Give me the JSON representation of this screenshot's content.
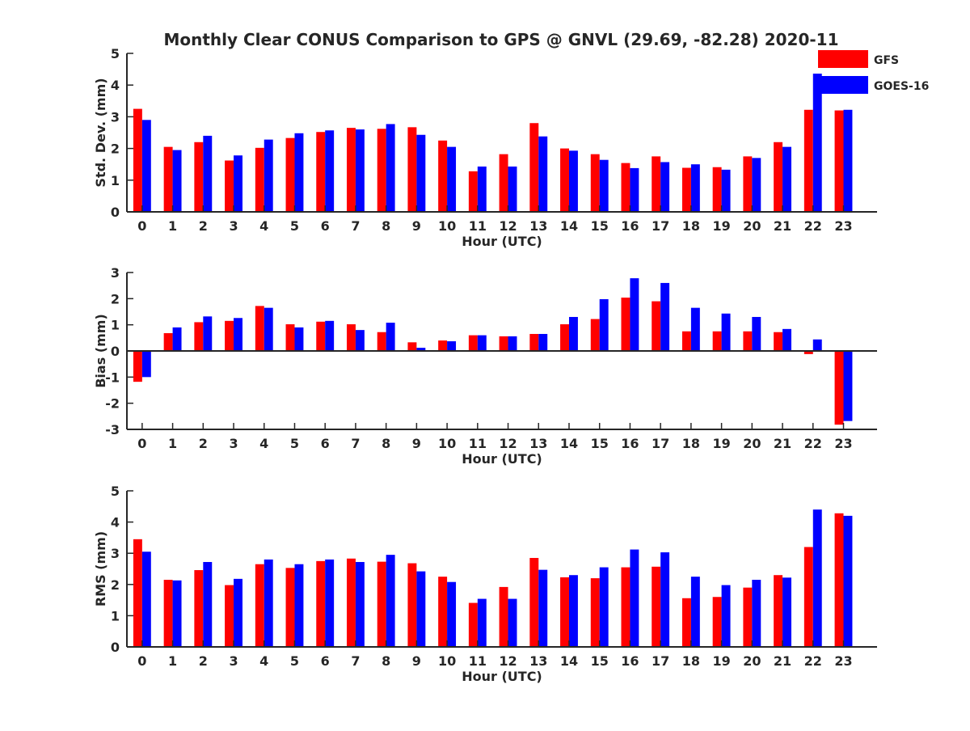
{
  "title": "Monthly Clear CONUS Comparison to GPS @ GNVL (29.69, -82.28) 2020-11",
  "legend": [
    {
      "name": "GFS",
      "color": "#ff0000"
    },
    {
      "name": "GOES-16",
      "color": "#0000ff"
    }
  ],
  "chart_data": [
    {
      "type": "bar",
      "categories": [
        "0",
        "1",
        "2",
        "3",
        "4",
        "5",
        "6",
        "7",
        "8",
        "9",
        "10",
        "11",
        "12",
        "13",
        "14",
        "15",
        "16",
        "17",
        "18",
        "19",
        "20",
        "21",
        "22",
        "23"
      ],
      "xlabel": "Hour (UTC)",
      "ylabel": "Std. Dev. (mm)",
      "ylim": [
        0,
        5
      ],
      "yticks": [
        0,
        1,
        2,
        3,
        4,
        5
      ],
      "series": [
        {
          "name": "GFS",
          "color": "#ff0000",
          "values": [
            3.25,
            2.05,
            2.2,
            1.62,
            2.02,
            2.33,
            2.52,
            2.65,
            2.62,
            2.67,
            2.25,
            1.28,
            1.82,
            2.8,
            2.0,
            1.82,
            1.54,
            1.75,
            1.39,
            1.41,
            1.75,
            2.2,
            3.22,
            3.2
          ]
        },
        {
          "name": "GOES-16",
          "color": "#0000ff",
          "values": [
            2.9,
            1.95,
            2.4,
            1.78,
            2.28,
            2.48,
            2.57,
            2.6,
            2.77,
            2.43,
            2.05,
            1.43,
            1.43,
            2.38,
            1.93,
            1.64,
            1.38,
            1.57,
            1.5,
            1.33,
            1.7,
            2.05,
            4.36,
            3.22
          ]
        }
      ],
      "grid": false,
      "legend_position": "top-right"
    },
    {
      "type": "bar",
      "categories": [
        "0",
        "1",
        "2",
        "3",
        "4",
        "5",
        "6",
        "7",
        "8",
        "9",
        "10",
        "11",
        "12",
        "13",
        "14",
        "15",
        "16",
        "17",
        "18",
        "19",
        "20",
        "21",
        "22",
        "23"
      ],
      "xlabel": "Hour (UTC)",
      "ylabel": "Bias (mm)",
      "ylim": [
        -3,
        3
      ],
      "yticks": [
        -3,
        -2,
        -1,
        0,
        1,
        2,
        3
      ],
      "series": [
        {
          "name": "GFS",
          "color": "#ff0000",
          "values": [
            -1.18,
            0.68,
            1.1,
            1.15,
            1.72,
            1.02,
            1.12,
            1.02,
            0.72,
            0.33,
            0.4,
            0.6,
            0.56,
            0.65,
            1.02,
            1.22,
            2.04,
            1.9,
            0.75,
            0.75,
            0.75,
            0.72,
            -0.12,
            -2.82
          ]
        },
        {
          "name": "GOES-16",
          "color": "#0000ff",
          "values": [
            -1.0,
            0.9,
            1.32,
            1.26,
            1.65,
            0.9,
            1.15,
            0.8,
            1.08,
            0.12,
            0.37,
            0.6,
            0.56,
            0.65,
            1.3,
            1.98,
            2.78,
            2.6,
            1.65,
            1.43,
            1.3,
            0.84,
            0.44,
            -2.68
          ]
        }
      ],
      "grid": false
    },
    {
      "type": "bar",
      "categories": [
        "0",
        "1",
        "2",
        "3",
        "4",
        "5",
        "6",
        "7",
        "8",
        "9",
        "10",
        "11",
        "12",
        "13",
        "14",
        "15",
        "16",
        "17",
        "18",
        "19",
        "20",
        "21",
        "22",
        "23"
      ],
      "xlabel": "Hour (UTC)",
      "ylabel": "RMS (mm)",
      "ylim": [
        0,
        5
      ],
      "yticks": [
        0,
        1,
        2,
        3,
        4,
        5
      ],
      "series": [
        {
          "name": "GFS",
          "color": "#ff0000",
          "values": [
            3.45,
            2.15,
            2.46,
            1.98,
            2.65,
            2.53,
            2.75,
            2.83,
            2.73,
            2.68,
            2.25,
            1.41,
            1.92,
            2.85,
            2.23,
            2.2,
            2.55,
            2.57,
            1.56,
            1.6,
            1.9,
            2.3,
            3.2,
            4.28
          ]
        },
        {
          "name": "GOES-16",
          "color": "#0000ff",
          "values": [
            3.05,
            2.13,
            2.72,
            2.18,
            2.8,
            2.65,
            2.8,
            2.72,
            2.95,
            2.42,
            2.08,
            1.54,
            1.54,
            2.47,
            2.3,
            2.55,
            3.12,
            3.03,
            2.25,
            1.98,
            2.15,
            2.22,
            4.4,
            4.2
          ]
        }
      ],
      "grid": false
    }
  ]
}
